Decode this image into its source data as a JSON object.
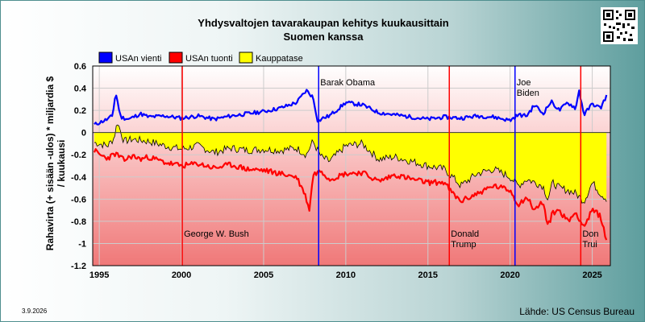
{
  "chart_data": {
    "type": "line",
    "title": "Yhdysvaltojen tavarakaupan kehitys kuukausittain",
    "subtitle": "Suomen kanssa",
    "ylabel": "Rahavirta (+ sisään -ulos)  * miljardia $ / kuukausi",
    "xlabel": "",
    "xlim": [
      1994.6,
      2026.1
    ],
    "ylim": [
      -1.2,
      0.6
    ],
    "x_ticks": [
      "1995",
      "2000",
      "2005",
      "2010",
      "2015",
      "2020",
      "2025"
    ],
    "y_ticks": [
      "0.6",
      "0.4",
      "0.2",
      "0",
      "-0.2",
      "-0.4",
      "-0.6",
      "-0.8",
      "-1",
      "-1.2"
    ],
    "legend": [
      "USAn vienti",
      "USAn tuonti",
      "Kauppatase"
    ],
    "legend_position": "top-left",
    "grid": true,
    "series": [
      {
        "name": "USAn vienti",
        "color": "#0000ff",
        "x": [
          1994.7,
          1995.0,
          1995.5,
          1995.8,
          1996.0,
          1996.3,
          1996.8,
          1997.5,
          1998.0,
          1999.0,
          2000.0,
          2001.0,
          2002.0,
          2003.0,
          2004.0,
          2005.0,
          2006.0,
          2007.0,
          2007.6,
          2008.0,
          2008.3,
          2008.6,
          2009.0,
          2010.0,
          2011.0,
          2012.0,
          2013.0,
          2014.0,
          2015.0,
          2016.0,
          2017.0,
          2018.0,
          2019.0,
          2020.0,
          2020.5,
          2021.0,
          2021.5,
          2022.0,
          2022.5,
          2023.0,
          2023.5,
          2024.0,
          2024.2,
          2024.5,
          2025.0,
          2025.5,
          2025.9
        ],
        "y": [
          0.07,
          0.09,
          0.12,
          0.15,
          0.36,
          0.14,
          0.12,
          0.17,
          0.14,
          0.15,
          0.13,
          0.15,
          0.12,
          0.15,
          0.17,
          0.19,
          0.22,
          0.27,
          0.38,
          0.32,
          0.1,
          0.13,
          0.15,
          0.27,
          0.25,
          0.18,
          0.16,
          0.14,
          0.12,
          0.14,
          0.13,
          0.15,
          0.14,
          0.11,
          0.16,
          0.15,
          0.25,
          0.17,
          0.28,
          0.2,
          0.27,
          0.22,
          0.38,
          0.16,
          0.26,
          0.22,
          0.34
        ]
      },
      {
        "name": "USAn tuonti",
        "color": "#ff0000",
        "x": [
          1994.7,
          1995.0,
          1995.5,
          1996.0,
          1996.5,
          1997.0,
          1997.5,
          1998.0,
          1999.0,
          2000.0,
          2001.0,
          2002.0,
          2003.0,
          2004.0,
          2005.0,
          2006.0,
          2007.0,
          2007.5,
          2007.8,
          2008.0,
          2008.5,
          2009.0,
          2010.0,
          2011.0,
          2012.0,
          2013.0,
          2014.0,
          2015.0,
          2016.0,
          2016.5,
          2017.0,
          2018.0,
          2019.0,
          2020.0,
          2020.5,
          2021.0,
          2021.5,
          2022.0,
          2022.3,
          2022.6,
          2023.0,
          2023.5,
          2024.0,
          2024.5,
          2025.0,
          2025.5,
          2025.9
        ],
        "y": [
          -0.16,
          -0.2,
          -0.23,
          -0.19,
          -0.25,
          -0.21,
          -0.24,
          -0.22,
          -0.27,
          -0.3,
          -0.28,
          -0.32,
          -0.29,
          -0.33,
          -0.34,
          -0.37,
          -0.4,
          -0.55,
          -0.7,
          -0.38,
          -0.34,
          -0.42,
          -0.37,
          -0.36,
          -0.44,
          -0.38,
          -0.42,
          -0.45,
          -0.45,
          -0.55,
          -0.62,
          -0.55,
          -0.48,
          -0.52,
          -0.65,
          -0.58,
          -0.7,
          -0.62,
          -0.85,
          -0.72,
          -0.7,
          -0.8,
          -0.72,
          -0.85,
          -0.7,
          -0.75,
          -1.0
        ]
      },
      {
        "name": "Kauppatase",
        "color": "#ffff00",
        "x": [
          1994.7,
          1995.0,
          1995.5,
          1995.9,
          1996.1,
          1996.5,
          1997.0,
          1998.0,
          1999.0,
          2000.0,
          2001.0,
          2002.0,
          2003.0,
          2004.0,
          2005.0,
          2006.0,
          2007.0,
          2007.6,
          2008.0,
          2008.5,
          2009.0,
          2010.0,
          2011.0,
          2012.0,
          2013.0,
          2014.0,
          2015.0,
          2016.0,
          2016.5,
          2017.0,
          2018.0,
          2019.0,
          2020.0,
          2020.5,
          2021.0,
          2021.5,
          2022.0,
          2022.3,
          2022.6,
          2023.0,
          2023.5,
          2024.0,
          2024.5,
          2025.0,
          2025.5,
          2025.9
        ],
        "y": [
          -0.09,
          -0.1,
          -0.12,
          -0.05,
          0.1,
          -0.08,
          -0.06,
          -0.08,
          -0.12,
          -0.15,
          -0.12,
          -0.18,
          -0.14,
          -0.16,
          -0.15,
          -0.16,
          -0.14,
          -0.2,
          -0.08,
          -0.22,
          -0.26,
          -0.12,
          -0.1,
          -0.24,
          -0.22,
          -0.26,
          -0.3,
          -0.33,
          -0.4,
          -0.48,
          -0.37,
          -0.33,
          -0.4,
          -0.48,
          -0.42,
          -0.45,
          -0.48,
          -0.6,
          -0.45,
          -0.5,
          -0.52,
          -0.55,
          -0.62,
          -0.45,
          -0.55,
          -0.6
        ]
      }
    ],
    "annotations": [
      {
        "x": 2000.05,
        "label": [
          "George W. Bush"
        ],
        "color": "#ff0000",
        "pos": "bottom"
      },
      {
        "x": 2008.35,
        "label": [
          "Barak Obama"
        ],
        "color": "#0000ff",
        "pos": "top"
      },
      {
        "x": 2016.3,
        "label": [
          "Donald",
          "Trump"
        ],
        "color": "#ff0000",
        "pos": "bottom"
      },
      {
        "x": 2020.3,
        "label": [
          "Joe",
          "Biden"
        ],
        "color": "#0000ff",
        "pos": "top"
      },
      {
        "x": 2024.3,
        "label": [
          "Don",
          "Trui"
        ],
        "color": "#ff0000",
        "pos": "bottom"
      }
    ]
  },
  "footer": {
    "date": "3.9.2026",
    "source": "Lähde: US Census Bureau"
  }
}
